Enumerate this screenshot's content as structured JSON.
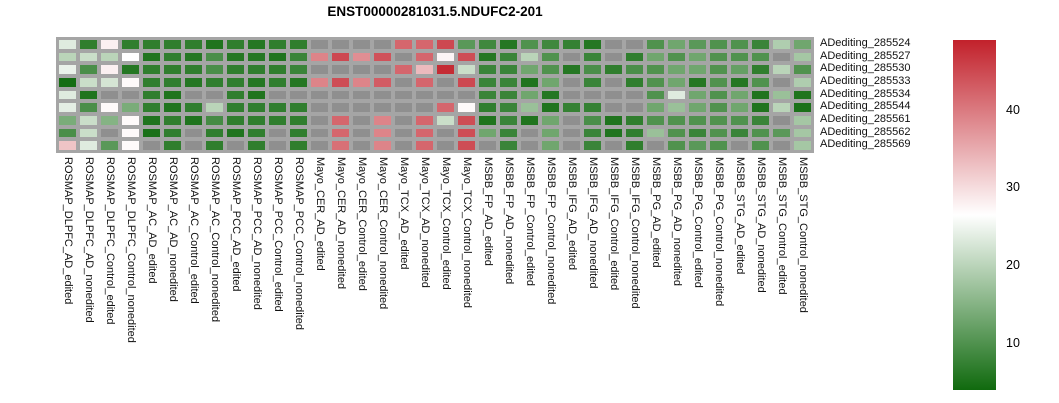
{
  "title": "ENST00000281031.5.NDUFC2-201",
  "chart_data": {
    "type": "heatmap",
    "rows": [
      "ADediting_285524",
      "ADediting_285527",
      "ADediting_285530",
      "ADediting_285533",
      "ADediting_285534",
      "ADediting_285544",
      "ADediting_285561",
      "ADediting_285562",
      "ADediting_285569"
    ],
    "columns": [
      "ROSMAP_DLPFC_AD_edited",
      "ROSMAP_DLPFC_AD_nonedited",
      "ROSMAP_DLPFC_Control_edited",
      "ROSMAP_DLPFC_Control_nonedited",
      "ROSMAP_AC_AD_edited",
      "ROSMAP_AC_AD_nonedited",
      "ROSMAP_AC_Control_edited",
      "ROSMAP_AC_Control_nonedited",
      "ROSMAP_PCC_AD_edited",
      "ROSMAP_PCC_AD_nonedited",
      "ROSMAP_PCC_Control_edited",
      "ROSMAP_PCC_Control_nonedited",
      "Mayo_CER_AD_edited",
      "Mayo_CER_AD_nonedited",
      "Mayo_CER_Control_edited",
      "Mayo_CER_Control_nonedited",
      "Mayo_TCX_AD_edited",
      "Mayo_TCX_AD_nonedited",
      "Mayo_TCX_Control_edited",
      "Mayo_TCX_Control_nonedited",
      "MSBB_FP_AD_edited",
      "MSBB_FP_AD_nonedited",
      "MSBB_FP_Control_edited",
      "MSBB_FP_Control_nonedited",
      "MSBB_IFG_AD_edited",
      "MSBB_IFG_AD_nonedited",
      "MSBB_IFG_Control_edited",
      "MSBB_IFG_Control_nonedited",
      "MSBB_PG_AD_edited",
      "MSBB_PG_AD_nonedited",
      "MSBB_PG_Control_edited",
      "MSBB_PG_Control_nonedited",
      "MSBB_STG_AD_edited",
      "MSBB_STG_AD_nonedited",
      "MSBB_STG_Control_edited",
      "MSBB_STG_Control_nonedited"
    ],
    "values": [
      [
        23.5,
        7,
        28,
        7,
        7,
        7,
        7,
        5.5,
        7,
        6,
        7,
        7,
        null,
        null,
        null,
        null,
        42,
        42,
        45,
        11,
        8.5,
        6,
        10,
        8.5,
        7.5,
        6,
        null,
        null,
        10,
        13,
        11,
        10,
        10,
        8,
        19,
        13
      ],
      [
        20,
        21.5,
        20,
        26.5,
        5.5,
        7,
        6,
        9.5,
        6,
        6,
        5.5,
        8,
        39,
        45,
        38,
        44,
        null,
        42,
        27.5,
        44.5,
        6,
        8,
        20,
        10,
        null,
        8,
        null,
        7,
        13,
        10,
        13,
        10,
        10,
        10,
        null,
        18
      ],
      [
        24.5,
        9.5,
        28,
        6,
        7,
        7,
        7,
        9.5,
        7,
        7,
        7,
        8,
        null,
        null,
        null,
        null,
        42,
        33.5,
        48,
        21.5,
        8,
        8,
        13,
        10,
        6,
        9.5,
        7,
        9.5,
        10,
        13,
        13,
        10,
        12,
        7,
        20,
        10
      ],
      [
        4.5,
        21.5,
        22.5,
        27,
        7,
        7,
        6,
        7,
        7,
        6,
        7,
        6,
        39,
        44.5,
        39,
        43,
        null,
        42,
        null,
        45,
        8,
        8,
        5.5,
        13,
        null,
        8,
        null,
        7,
        10,
        13,
        6,
        10,
        6,
        10,
        null,
        19
      ],
      [
        23.5,
        5.5,
        null,
        null,
        7,
        5.5,
        null,
        null,
        7,
        5.5,
        null,
        null,
        null,
        null,
        null,
        null,
        null,
        null,
        null,
        null,
        8,
        8,
        13,
        6,
        null,
        null,
        null,
        null,
        10,
        23.5,
        13,
        10,
        13,
        5.5,
        17,
        5.5
      ],
      [
        24,
        9.5,
        27,
        14,
        7,
        5.5,
        7,
        20,
        7,
        7,
        7,
        7,
        null,
        null,
        null,
        null,
        null,
        null,
        42,
        27,
        7,
        8,
        17,
        5.5,
        7.5,
        7.5,
        null,
        null,
        13,
        17,
        13,
        10,
        13,
        5.5,
        20,
        5
      ],
      [
        14,
        21.5,
        15,
        27,
        5.5,
        7,
        5.5,
        9,
        7,
        7,
        7,
        7,
        null,
        42,
        null,
        39,
        null,
        42,
        21.5,
        44.5,
        5.5,
        8,
        5.5,
        13,
        null,
        9.5,
        5.5,
        7,
        10,
        10,
        10,
        10,
        10,
        8,
        null,
        18
      ],
      [
        9.5,
        21.5,
        null,
        27,
        5,
        7,
        null,
        7,
        5.5,
        7,
        null,
        7,
        null,
        42,
        null,
        39,
        null,
        42,
        null,
        44.5,
        13,
        8,
        null,
        13,
        null,
        8,
        5.5,
        7,
        17,
        10,
        8,
        10,
        8,
        10,
        11,
        18
      ],
      [
        32.5,
        23.5,
        11,
        27,
        null,
        7,
        null,
        7,
        null,
        7,
        null,
        7,
        null,
        41,
        null,
        39,
        null,
        42,
        null,
        44.5,
        null,
        8,
        null,
        13,
        null,
        8,
        null,
        7,
        null,
        10,
        11,
        10,
        null,
        10,
        null,
        18
      ]
    ],
    "na_color": "#8f8f8f",
    "grid_color": "#a5a5a5",
    "colormap": {
      "low": "#106a0e",
      "mid": "#ffffff",
      "high": "#c2212b",
      "vmin": 4,
      "vmid": 26.5,
      "vmax": 49
    },
    "colorbar_ticks": [
      40,
      30,
      20,
      10
    ],
    "legend_position": "right",
    "grid": true
  }
}
